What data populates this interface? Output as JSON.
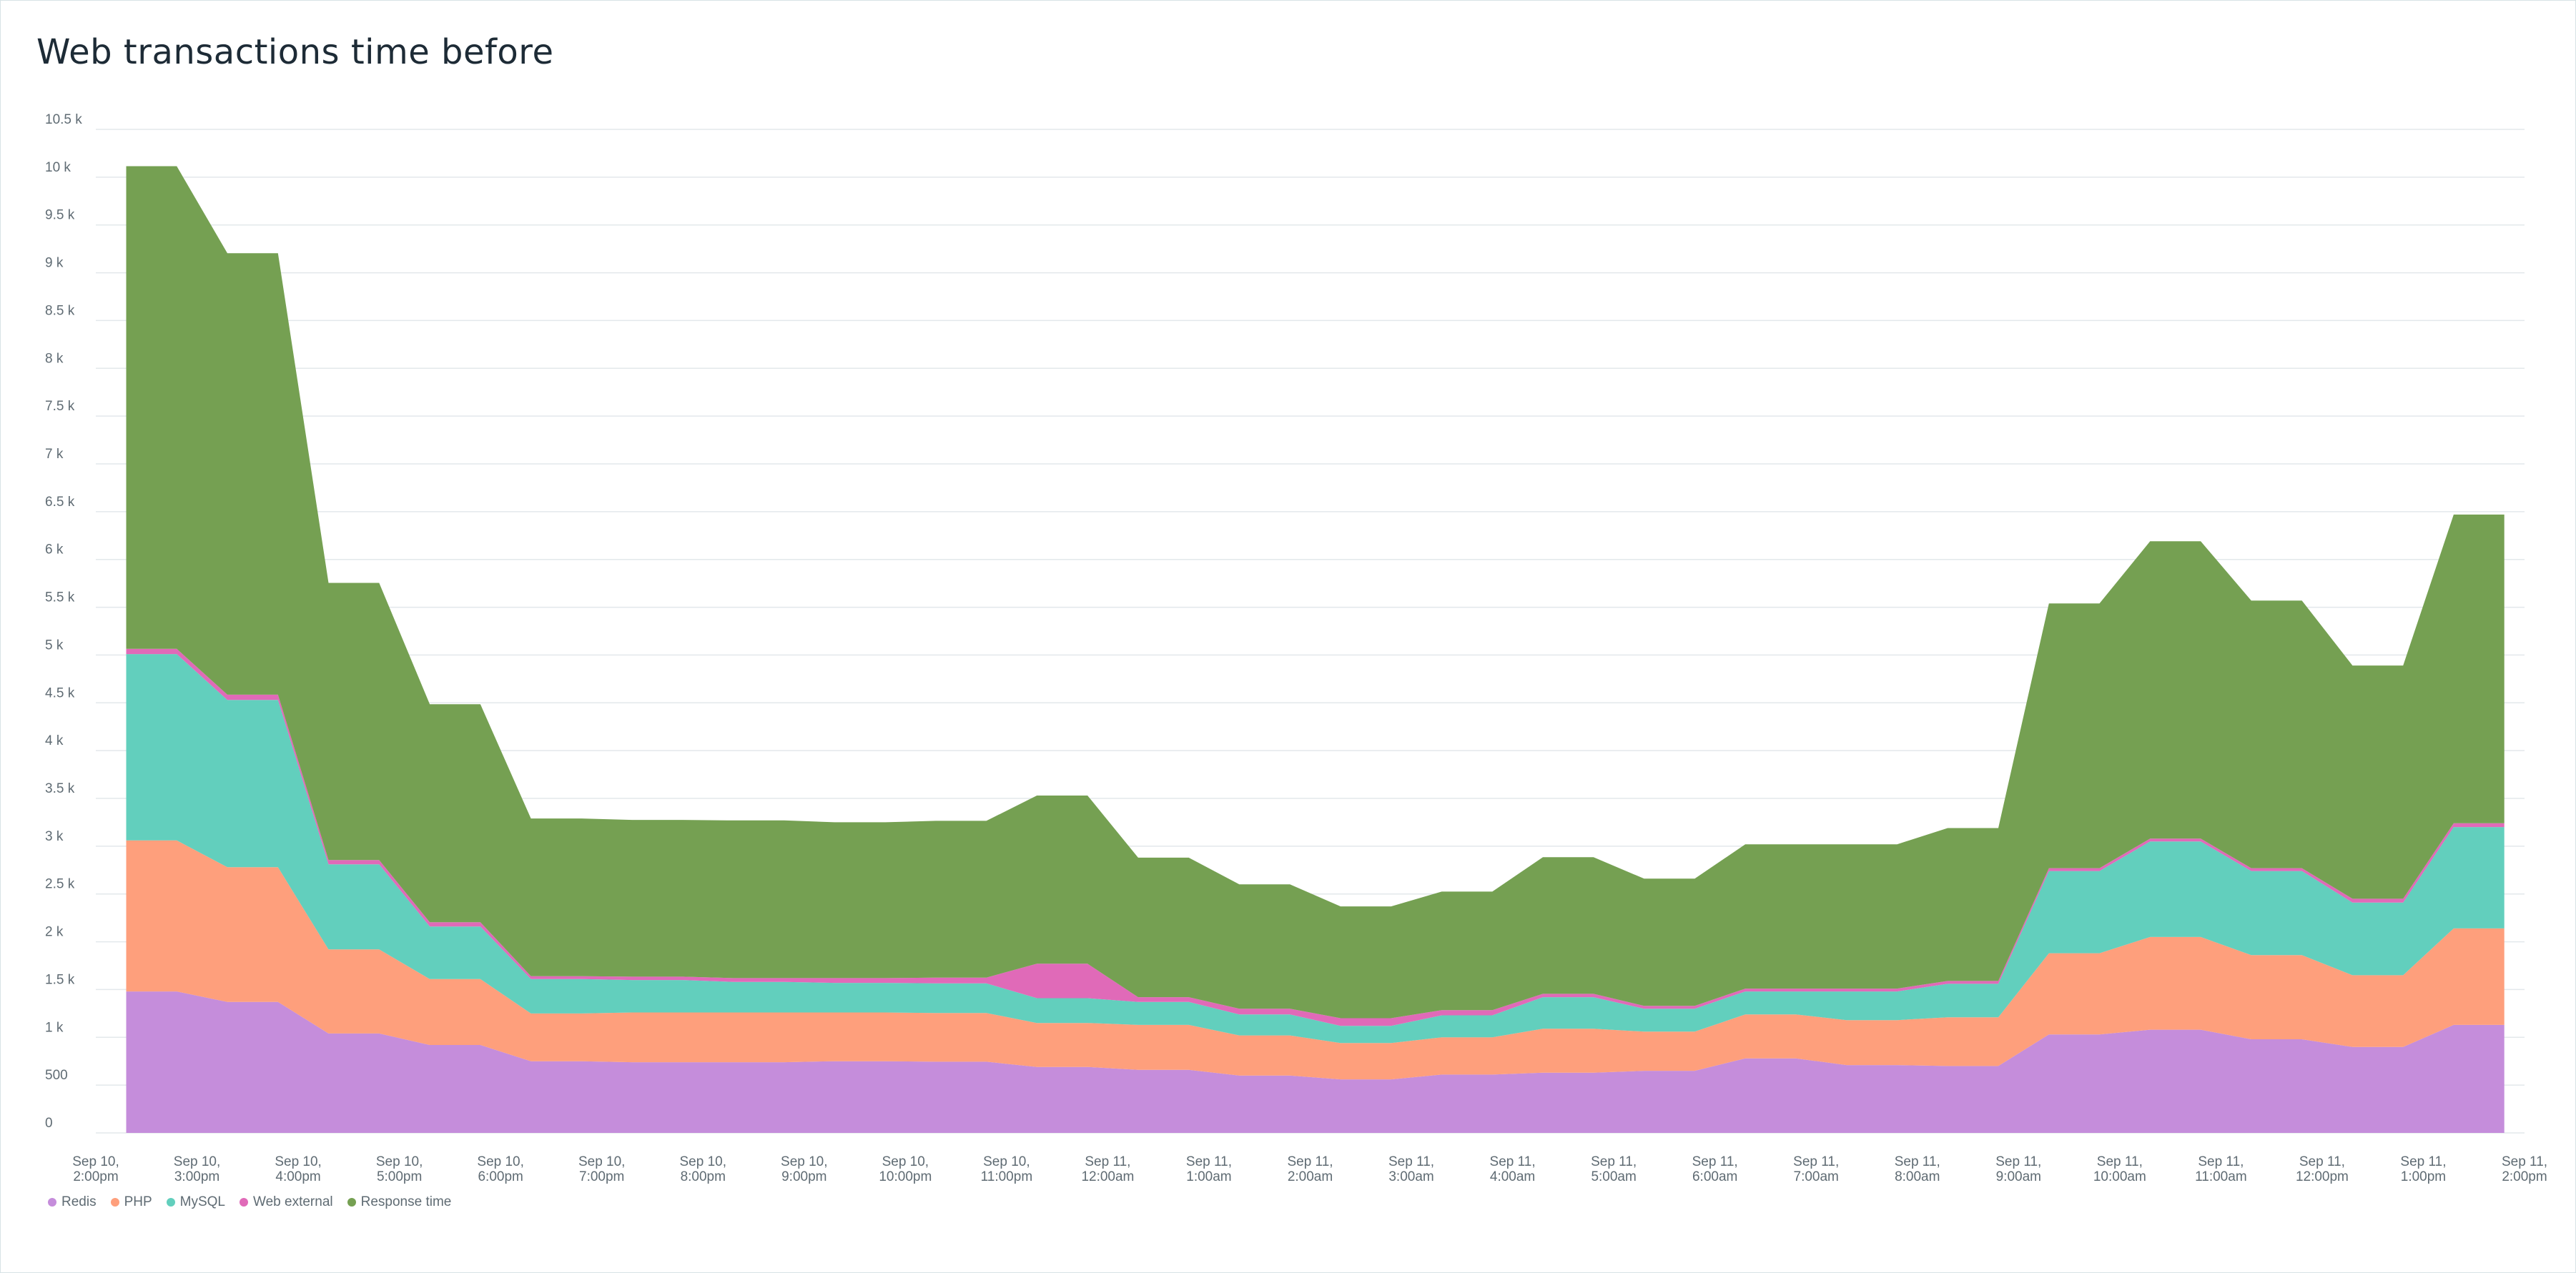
{
  "title": "Web transactions time before",
  "colors": {
    "Redis": "#c58ddb",
    "PHP": "#fe9f7c",
    "MySQL": "#62cfbd",
    "Web external": "#e06ab8",
    "Response time": "#75a052"
  },
  "chart_data": {
    "type": "area",
    "stacked": true,
    "title": "Web transactions time before",
    "ylim": [
      0,
      10500
    ],
    "y_ticks": [
      0,
      500,
      1000,
      1500,
      2000,
      2500,
      3000,
      3500,
      4000,
      4500,
      5000,
      5500,
      6000,
      6500,
      7000,
      7500,
      8000,
      8500,
      9000,
      9500,
      10000,
      10500
    ],
    "y_tick_labels": [
      "0",
      "500",
      "1 k",
      "1.5 k",
      "2 k",
      "2.5 k",
      "3 k",
      "3.5 k",
      "4 k",
      "4.5 k",
      "5 k",
      "5.5 k",
      "6 k",
      "6.5 k",
      "7 k",
      "7.5 k",
      "8 k",
      "8.5 k",
      "9 k",
      "9.5 k",
      "10 k",
      "10.5 k"
    ],
    "x_tick_labels": [
      [
        "Sep 10,",
        "2:00pm"
      ],
      [
        "Sep 10,",
        "3:00pm"
      ],
      [
        "Sep 10,",
        "4:00pm"
      ],
      [
        "Sep 10,",
        "5:00pm"
      ],
      [
        "Sep 10,",
        "6:00pm"
      ],
      [
        "Sep 10,",
        "7:00pm"
      ],
      [
        "Sep 10,",
        "8:00pm"
      ],
      [
        "Sep 10,",
        "9:00pm"
      ],
      [
        "Sep 10,",
        "10:00pm"
      ],
      [
        "Sep 10,",
        "11:00pm"
      ],
      [
        "Sep 11,",
        "12:00am"
      ],
      [
        "Sep 11,",
        "1:00am"
      ],
      [
        "Sep 11,",
        "2:00am"
      ],
      [
        "Sep 11,",
        "3:00am"
      ],
      [
        "Sep 11,",
        "4:00am"
      ],
      [
        "Sep 11,",
        "5:00am"
      ],
      [
        "Sep 11,",
        "6:00am"
      ],
      [
        "Sep 11,",
        "7:00am"
      ],
      [
        "Sep 11,",
        "8:00am"
      ],
      [
        "Sep 11,",
        "9:00am"
      ],
      [
        "Sep 11,",
        "10:00am"
      ],
      [
        "Sep 11,",
        "11:00am"
      ],
      [
        "Sep 11,",
        "12:00pm"
      ],
      [
        "Sep 11,",
        "1:00pm"
      ],
      [
        "Sep 11,",
        "2:00pm"
      ]
    ],
    "x_hours": [
      0.3,
      0.8,
      1.3,
      1.8,
      2.3,
      2.8,
      3.3,
      3.8,
      4.3,
      4.8,
      5.3,
      5.8,
      6.3,
      6.8,
      7.3,
      7.8,
      8.3,
      8.8,
      9.3,
      9.8,
      10.3,
      10.8,
      11.3,
      11.8,
      12.3,
      12.8,
      13.3,
      13.8,
      14.3,
      14.8,
      15.3,
      15.8,
      16.3,
      16.8,
      17.3,
      17.8,
      18.3,
      18.8,
      19.3,
      19.8,
      20.3,
      20.8,
      21.3,
      21.8,
      22.3,
      22.8,
      23.3,
      23.8
    ],
    "series": [
      {
        "name": "Redis",
        "values": [
          1480,
          1480,
          1370,
          1370,
          1040,
          1040,
          920,
          920,
          750,
          750,
          740,
          740,
          740,
          740,
          750,
          750,
          745,
          745,
          690,
          690,
          660,
          660,
          600,
          600,
          560,
          560,
          610,
          610,
          630,
          630,
          650,
          650,
          780,
          780,
          710,
          710,
          700,
          700,
          1030,
          1030,
          1080,
          1080,
          980,
          980,
          900,
          900,
          1130,
          1130
        ]
      },
      {
        "name": "PHP",
        "values": [
          1580,
          1580,
          1410,
          1410,
          880,
          880,
          690,
          690,
          500,
          500,
          520,
          520,
          520,
          520,
          510,
          510,
          510,
          510,
          460,
          460,
          470,
          470,
          420,
          420,
          380,
          380,
          390,
          390,
          460,
          460,
          410,
          410,
          460,
          460,
          470,
          470,
          510,
          510,
          850,
          850,
          970,
          970,
          880,
          880,
          750,
          750,
          1010,
          1010
        ]
      },
      {
        "name": "MySQL",
        "values": [
          1950,
          1950,
          1750,
          1750,
          890,
          890,
          550,
          550,
          360,
          360,
          340,
          340,
          320,
          320,
          310,
          310,
          310,
          310,
          260,
          260,
          240,
          240,
          220,
          220,
          180,
          180,
          230,
          230,
          330,
          330,
          240,
          240,
          240,
          240,
          300,
          300,
          350,
          350,
          860,
          860,
          1000,
          1000,
          880,
          880,
          760,
          760,
          1060,
          1060
        ]
      },
      {
        "name": "Web external",
        "values": [
          55,
          55,
          55,
          55,
          45,
          45,
          45,
          45,
          30,
          30,
          35,
          35,
          40,
          40,
          50,
          50,
          60,
          60,
          360,
          360,
          50,
          50,
          60,
          60,
          80,
          80,
          55,
          55,
          35,
          35,
          30,
          30,
          30,
          30,
          30,
          30,
          30,
          30,
          30,
          30,
          30,
          30,
          30,
          30,
          40,
          40,
          40,
          40
        ]
      },
      {
        "name": "Response time",
        "values": [
          5050,
          5050,
          4620,
          4620,
          2900,
          2900,
          2280,
          2280,
          1650,
          1650,
          1640,
          1640,
          1650,
          1650,
          1630,
          1630,
          1640,
          1640,
          1760,
          1760,
          1460,
          1460,
          1300,
          1300,
          1170,
          1170,
          1240,
          1240,
          1430,
          1430,
          1330,
          1330,
          1510,
          1510,
          1510,
          1510,
          1600,
          1600,
          2770,
          2770,
          3110,
          3110,
          2800,
          2800,
          2440,
          2440,
          3230,
          3230
        ]
      }
    ],
    "legend": [
      "Redis",
      "PHP",
      "MySQL",
      "Web external",
      "Response time"
    ],
    "legend_position": "bottom-left",
    "grid": true
  }
}
